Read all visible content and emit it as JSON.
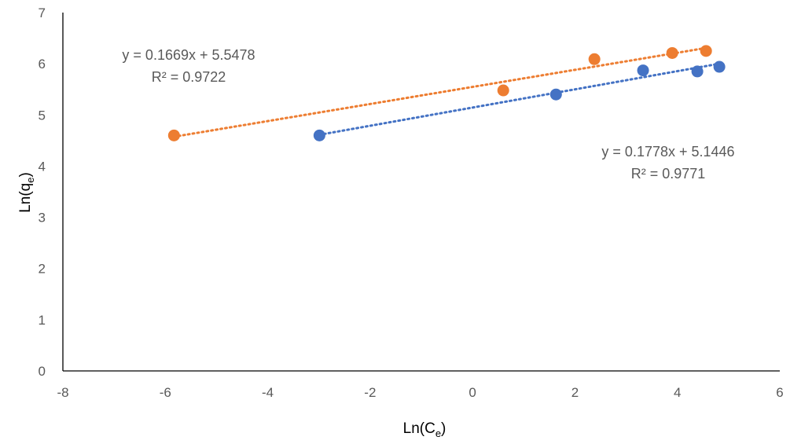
{
  "chart_data": {
    "type": "scatter",
    "xlim": [
      -8,
      6
    ],
    "ylim": [
      0,
      7
    ],
    "x_ticks": [
      "-8",
      "-6",
      "-4",
      "-2",
      "0",
      "2",
      "4",
      "6"
    ],
    "y_ticks": [
      "0",
      "1",
      "2",
      "3",
      "4",
      "5",
      "6",
      "7"
    ],
    "xlabel": {
      "main": "Ln(C",
      "sub": "e",
      "close": ")"
    },
    "ylabel": {
      "main": "Ln(q",
      "sub": "e",
      "close": ")"
    },
    "grid": false,
    "series": [
      {
        "color": "#ED7D31",
        "points": [
          [
            -5.83,
            4.6
          ],
          [
            0.6,
            5.48
          ],
          [
            2.38,
            6.09
          ],
          [
            3.9,
            6.21
          ],
          [
            4.56,
            6.25
          ]
        ],
        "trendline": {
          "type": "linear",
          "slope": 0.1669,
          "intercept": 5.5478,
          "style": "dotted",
          "x_range": [
            -5.83,
            4.56
          ]
        },
        "equation": "y = 0.1669x + 5.5478",
        "r_squared": "R² = 0.9722"
      },
      {
        "color": "#4472C4",
        "points": [
          [
            -2.99,
            4.6
          ],
          [
            1.63,
            5.4
          ],
          [
            3.33,
            5.87
          ],
          [
            4.39,
            5.85
          ],
          [
            4.82,
            5.94
          ]
        ],
        "trendline": {
          "type": "linear",
          "slope": 0.1778,
          "intercept": 5.1446,
          "style": "dotted",
          "x_range": [
            -2.99,
            4.82
          ]
        },
        "equation": "y = 0.1778x + 5.1446",
        "r_squared": "R² = 0.9771"
      }
    ]
  }
}
